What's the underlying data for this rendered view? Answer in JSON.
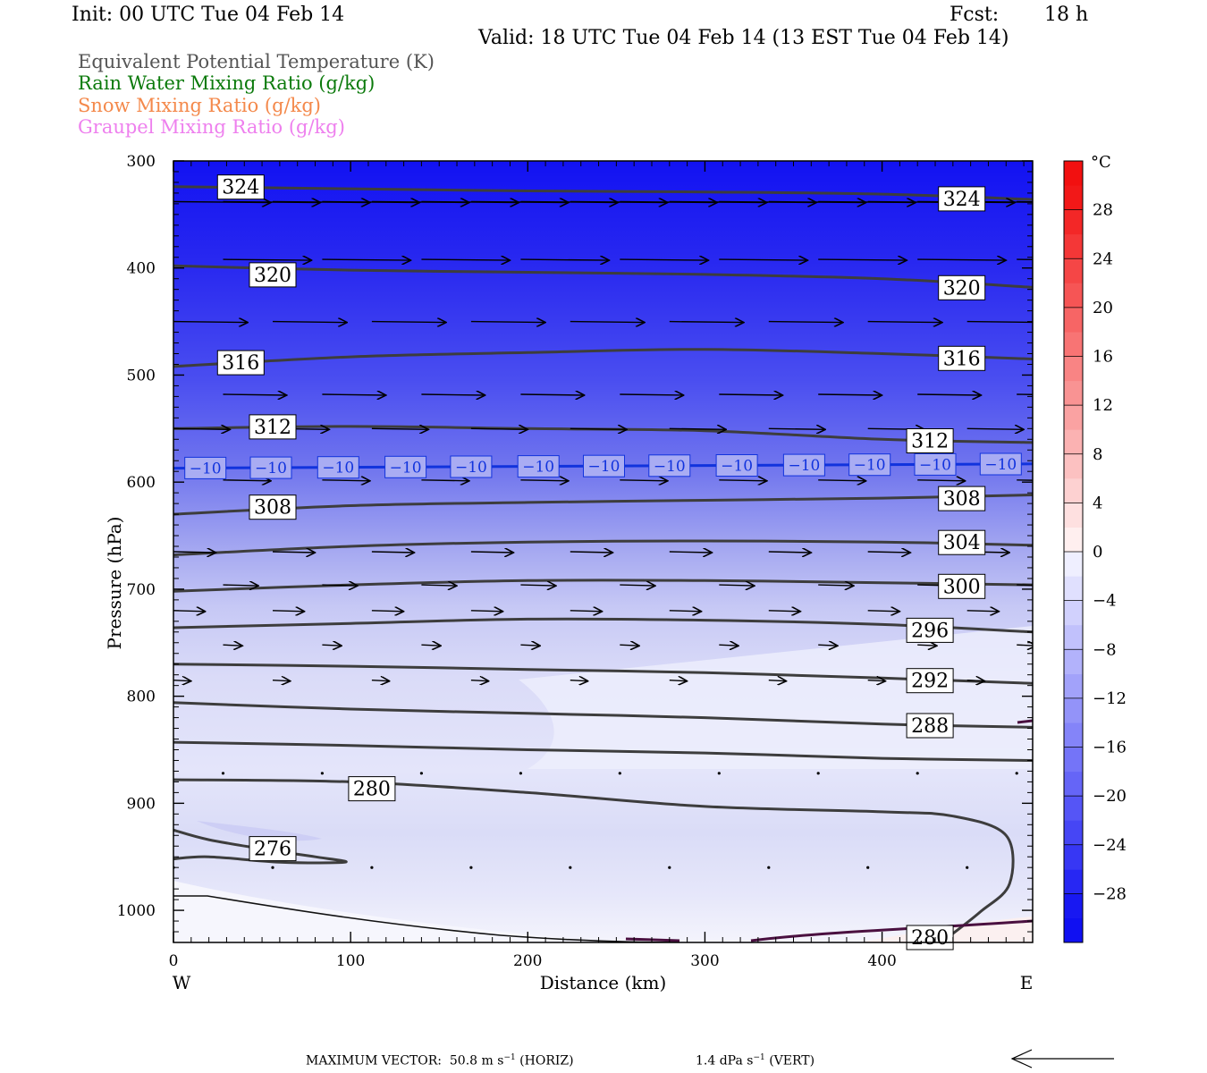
{
  "header": {
    "init": "Init: 00 UTC Tue 04 Feb 14",
    "fcst_label": "Fcst:",
    "fcst_value": "18 h",
    "valid": "Valid: 18 UTC Tue 04 Feb 14 (13 EST Tue 04 Feb 14)"
  },
  "legend": {
    "items": [
      {
        "label": "Equivalent Potential Temperature (K)",
        "color": "#555555"
      },
      {
        "label": "Rain Water Mixing Ratio (g/kg)",
        "color": "#0b7a0b"
      },
      {
        "label": "Snow Mixing Ratio (g/kg)",
        "color": "#f4894b"
      },
      {
        "label": "Graupel Mixing Ratio (g/kg)",
        "color": "#ee80ee"
      }
    ]
  },
  "chart_data": {
    "type": "heatmap",
    "xlabel": "Distance (km)",
    "ylabel": "Pressure (hPa)",
    "x_ticks": [
      0,
      100,
      200,
      300,
      400
    ],
    "y_ticks": [
      300,
      400,
      500,
      600,
      700,
      800,
      900,
      1000
    ],
    "xlim": [
      0,
      485
    ],
    "ylim": [
      300,
      1030
    ],
    "x_end_labels": {
      "left": "W",
      "right": "E"
    },
    "colorbar": {
      "unit": "°C",
      "range": [
        -32,
        32
      ],
      "tick_labels": [
        "28",
        "24",
        "20",
        "16",
        "12",
        "8",
        "4",
        "0",
        "−4",
        "−8",
        "−12",
        "−16",
        "−20",
        "−24",
        "−28"
      ],
      "tick_values": [
        28,
        24,
        20,
        16,
        12,
        8,
        4,
        0,
        -4,
        -8,
        -12,
        -16,
        -20,
        -24,
        -28
      ]
    },
    "theta_e_contours": [
      {
        "value": 324,
        "label": "324",
        "points": [
          [
            0,
            324
          ],
          [
            100,
            326
          ],
          [
            200,
            328
          ],
          [
            300,
            329
          ],
          [
            400,
            331
          ],
          [
            485,
            336
          ]
        ],
        "labels_at": [
          [
            38,
            324
          ],
          [
            445,
            335
          ]
        ]
      },
      {
        "value": 320,
        "label": "320",
        "points": [
          [
            0,
            398
          ],
          [
            100,
            402
          ],
          [
            200,
            404
          ],
          [
            300,
            406
          ],
          [
            400,
            410
          ],
          [
            485,
            418
          ]
        ],
        "labels_at": [
          [
            56,
            406
          ],
          [
            445,
            418
          ]
        ]
      },
      {
        "value": 316,
        "label": "316",
        "points": [
          [
            0,
            492
          ],
          [
            100,
            483
          ],
          [
            200,
            479
          ],
          [
            300,
            476
          ],
          [
            400,
            480
          ],
          [
            485,
            485
          ]
        ],
        "labels_at": [
          [
            38,
            488
          ],
          [
            445,
            484
          ]
        ]
      },
      {
        "value": 312,
        "label": "312",
        "points": [
          [
            0,
            550
          ],
          [
            100,
            548
          ],
          [
            200,
            550
          ],
          [
            300,
            552
          ],
          [
            400,
            560
          ],
          [
            485,
            563
          ]
        ],
        "labels_at": [
          [
            56,
            548
          ],
          [
            427,
            561
          ]
        ]
      },
      {
        "value": 308,
        "label": "308",
        "points": [
          [
            0,
            630
          ],
          [
            100,
            622
          ],
          [
            200,
            619
          ],
          [
            300,
            617
          ],
          [
            400,
            615
          ],
          [
            485,
            612
          ]
        ],
        "labels_at": [
          [
            56,
            623
          ],
          [
            445,
            615
          ]
        ]
      },
      {
        "value": 304,
        "label": "304",
        "points": [
          [
            0,
            668
          ],
          [
            100,
            660
          ],
          [
            200,
            656
          ],
          [
            300,
            655
          ],
          [
            400,
            656
          ],
          [
            485,
            659
          ]
        ],
        "labels_at": [
          [
            445,
            656
          ]
        ]
      },
      {
        "value": 300,
        "label": "300",
        "points": [
          [
            0,
            702
          ],
          [
            100,
            696
          ],
          [
            200,
            692
          ],
          [
            300,
            692
          ],
          [
            400,
            694
          ],
          [
            485,
            696
          ]
        ],
        "labels_at": [
          [
            445,
            697
          ]
        ]
      },
      {
        "value": 296,
        "label": "296",
        "points": [
          [
            0,
            736
          ],
          [
            100,
            732
          ],
          [
            200,
            728
          ],
          [
            300,
            729
          ],
          [
            400,
            733
          ],
          [
            485,
            740
          ]
        ],
        "labels_at": [
          [
            427,
            738
          ]
        ]
      },
      {
        "value": 292,
        "label": "292",
        "points": [
          [
            0,
            770
          ],
          [
            100,
            772
          ],
          [
            200,
            775
          ],
          [
            300,
            778
          ],
          [
            400,
            783
          ],
          [
            485,
            788
          ]
        ],
        "labels_at": [
          [
            427,
            785
          ]
        ]
      },
      {
        "value": 288,
        "label": "288",
        "points": [
          [
            0,
            806
          ],
          [
            100,
            812
          ],
          [
            200,
            816
          ],
          [
            300,
            820
          ],
          [
            400,
            826
          ],
          [
            485,
            829
          ]
        ],
        "labels_at": [
          [
            427,
            827
          ]
        ]
      },
      {
        "value": 284,
        "label": "",
        "points": [
          [
            0,
            843
          ],
          [
            100,
            846
          ],
          [
            200,
            850
          ],
          [
            300,
            853
          ],
          [
            400,
            858
          ],
          [
            485,
            860
          ]
        ],
        "labels_at": []
      },
      {
        "value": 280,
        "label": "280",
        "points": [
          [
            0,
            878
          ],
          [
            100,
            880
          ],
          [
            200,
            890
          ],
          [
            300,
            903
          ],
          [
            400,
            908
          ],
          [
            440,
            912
          ],
          [
            470,
            930
          ],
          [
            472,
            975
          ],
          [
            455,
            1002
          ],
          [
            435,
            1028
          ]
        ],
        "labels_at": [
          [
            112,
            886
          ],
          [
            427,
            1025
          ]
        ]
      },
      {
        "value": 276,
        "label": "276",
        "points": [
          [
            0,
            925
          ],
          [
            20,
            934
          ],
          [
            55,
            944
          ],
          [
            80,
            950
          ],
          [
            97,
            955
          ],
          [
            60,
            955
          ],
          [
            20,
            950
          ],
          [
            0,
            952
          ]
        ],
        "labels_at": [
          [
            56,
            942
          ]
        ]
      }
    ],
    "isotherm": {
      "value": -10,
      "label": "−10",
      "color": "#1133dd",
      "pressure_west": 587,
      "pressure_east": 583,
      "labels_at_x": [
        18,
        55,
        93,
        131,
        168,
        206,
        243,
        280,
        318,
        356,
        393,
        430,
        467
      ]
    },
    "vector_rows": [
      {
        "p": 338,
        "length_km": 55
      },
      {
        "p": 392,
        "length_km": 50
      },
      {
        "p": 450,
        "length_km": 42
      },
      {
        "p": 518,
        "length_km": 36
      },
      {
        "p": 550,
        "length_km": 32
      },
      {
        "p": 598,
        "length_km": 27
      },
      {
        "p": 665,
        "length_km": 24
      },
      {
        "p": 696,
        "length_km": 20
      },
      {
        "p": 720,
        "length_km": 18
      },
      {
        "p": 752,
        "length_km": 11
      },
      {
        "p": 785,
        "length_km": 10
      },
      {
        "p": 872,
        "length_km": 1
      },
      {
        "p": 960,
        "length_km": 1
      }
    ],
    "max_vector": {
      "label": "MAXIMUM VECTOR:",
      "horiz_value": "50.8 m s",
      "horiz_exp": "−1",
      "horiz_tag": "(HORIZ)",
      "vert_value": "1.4 dPa s",
      "vert_exp": "−1",
      "vert_tag": "(VERT)"
    }
  }
}
